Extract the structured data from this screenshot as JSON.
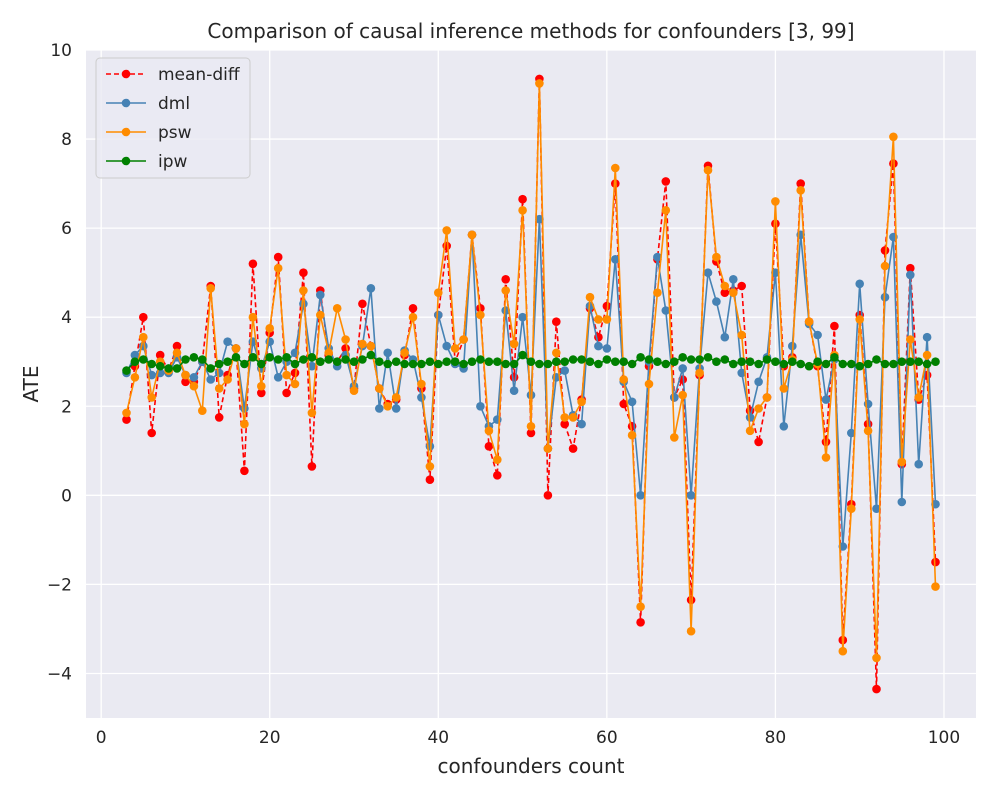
{
  "chart_data": {
    "type": "line",
    "title": "Comparison of causal inference methods for confounders [3, 99]",
    "xlabel": "confounders count",
    "ylabel": "ATE",
    "xlim": [
      -1.8,
      103.8
    ],
    "ylim": [
      -5,
      10
    ],
    "xticks": [
      0,
      20,
      40,
      60,
      80,
      100
    ],
    "yticks": [
      -4,
      -2,
      0,
      2,
      4,
      6,
      8,
      10
    ],
    "ytick_labels": [
      "−4",
      "−2",
      "0",
      "2",
      "4",
      "6",
      "8",
      "10"
    ],
    "grid": true,
    "background": "#eaeaf2",
    "legend_position": "upper-left",
    "x": [
      3,
      4,
      5,
      6,
      7,
      8,
      9,
      10,
      11,
      12,
      13,
      14,
      15,
      16,
      17,
      18,
      19,
      20,
      21,
      22,
      23,
      24,
      25,
      26,
      27,
      28,
      29,
      30,
      31,
      32,
      33,
      34,
      35,
      36,
      37,
      38,
      39,
      40,
      41,
      42,
      43,
      44,
      45,
      46,
      47,
      48,
      49,
      50,
      51,
      52,
      53,
      54,
      55,
      56,
      57,
      58,
      59,
      60,
      61,
      62,
      63,
      64,
      65,
      66,
      67,
      68,
      69,
      70,
      71,
      72,
      73,
      74,
      75,
      76,
      77,
      78,
      79,
      80,
      81,
      82,
      83,
      84,
      85,
      86,
      87,
      88,
      89,
      90,
      91,
      92,
      93,
      94,
      95,
      96,
      97,
      98,
      99
    ],
    "series": [
      {
        "name": "mean-diff",
        "color": "#ff0000",
        "linestyle": "dashed",
        "values": [
          1.7,
          2.9,
          4.0,
          1.4,
          3.15,
          2.8,
          3.35,
          2.55,
          2.55,
          3.0,
          4.7,
          1.75,
          2.7,
          3.3,
          0.55,
          5.2,
          2.3,
          3.65,
          5.35,
          2.3,
          2.75,
          5.0,
          0.65,
          4.6,
          3.15,
          3.0,
          3.3,
          2.4,
          4.3,
          3.35,
          2.4,
          2.05,
          2.15,
          3.15,
          4.2,
          2.4,
          0.35,
          4.05,
          5.6,
          3.0,
          3.5,
          5.85,
          4.2,
          1.1,
          0.45,
          4.85,
          2.65,
          6.65,
          1.4,
          9.35,
          0.0,
          3.9,
          1.6,
          1.05,
          2.15,
          4.2,
          3.55,
          4.25,
          7.0,
          2.05,
          1.55,
          -2.85,
          2.9,
          5.3,
          7.05,
          2.2,
          2.6,
          -2.35,
          2.7,
          7.4,
          5.25,
          4.55,
          4.6,
          4.7,
          1.9,
          1.2,
          2.2,
          6.1,
          2.9,
          3.1,
          7.0,
          3.9,
          2.9,
          1.2,
          3.8,
          -3.25,
          -0.2,
          4.05,
          1.6,
          -4.35,
          5.5,
          7.45,
          0.7,
          5.1,
          2.15,
          2.7,
          -1.5
        ]
      },
      {
        "name": "dml",
        "color": "#4682b4",
        "linestyle": "solid",
        "values": [
          2.75,
          3.15,
          3.35,
          2.7,
          2.75,
          2.75,
          3.1,
          2.7,
          2.65,
          3.0,
          2.6,
          2.75,
          3.45,
          3.3,
          1.95,
          3.45,
          2.85,
          3.45,
          2.65,
          3.0,
          3.2,
          4.3,
          2.9,
          4.5,
          3.3,
          2.9,
          3.15,
          2.45,
          3.35,
          4.65,
          1.95,
          3.2,
          1.95,
          3.25,
          3.05,
          2.2,
          1.1,
          4.05,
          3.35,
          2.95,
          2.85,
          5.85,
          2.0,
          1.55,
          1.7,
          4.15,
          2.35,
          4.0,
          2.25,
          6.2,
          1.05,
          2.65,
          2.8,
          1.8,
          1.6,
          4.25,
          3.35,
          3.3,
          5.3,
          2.55,
          2.1,
          0.0,
          3.0,
          5.35,
          4.15,
          2.2,
          2.85,
          0.0,
          2.85,
          5.0,
          4.35,
          3.55,
          4.85,
          2.75,
          1.75,
          2.55,
          3.1,
          5.0,
          1.55,
          3.35,
          5.85,
          3.85,
          3.6,
          2.15,
          3.05,
          -1.15,
          1.4,
          4.75,
          2.05,
          -0.3,
          4.45,
          5.8,
          -0.15,
          4.95,
          0.7,
          3.55,
          -0.2
        ]
      },
      {
        "name": "psw",
        "color": "#ff8c00",
        "linestyle": "solid",
        "values": [
          1.85,
          2.65,
          3.55,
          2.2,
          3.0,
          2.8,
          3.2,
          2.7,
          2.45,
          1.9,
          4.65,
          2.4,
          2.6,
          3.3,
          1.6,
          4.0,
          2.45,
          3.75,
          5.1,
          2.7,
          2.5,
          4.6,
          1.85,
          4.05,
          3.2,
          4.2,
          3.5,
          2.35,
          3.4,
          3.35,
          2.4,
          2.0,
          2.2,
          3.2,
          4.0,
          2.5,
          0.65,
          4.55,
          5.95,
          3.3,
          3.5,
          5.85,
          4.05,
          1.45,
          0.8,
          4.6,
          3.4,
          6.4,
          1.55,
          9.25,
          1.05,
          3.2,
          1.75,
          1.75,
          2.1,
          4.45,
          3.95,
          3.95,
          7.35,
          2.6,
          1.35,
          -2.5,
          2.5,
          4.55,
          6.4,
          1.3,
          2.25,
          -3.05,
          2.75,
          7.3,
          5.35,
          4.7,
          4.55,
          3.6,
          1.45,
          1.95,
          2.2,
          6.6,
          2.4,
          3.05,
          6.85,
          3.9,
          2.95,
          0.85,
          3.15,
          -3.5,
          -0.3,
          3.95,
          1.45,
          -3.65,
          5.15,
          8.05,
          0.75,
          3.5,
          2.2,
          3.15,
          -2.05
        ]
      },
      {
        "name": "ipw",
        "color": "#008000",
        "linestyle": "solid",
        "values": [
          2.8,
          3.0,
          3.05,
          2.95,
          2.9,
          2.85,
          2.85,
          3.05,
          3.1,
          3.05,
          2.85,
          2.95,
          3.0,
          3.1,
          2.95,
          3.1,
          2.95,
          3.1,
          3.05,
          3.1,
          2.95,
          3.05,
          3.1,
          3.0,
          3.05,
          3.0,
          3.05,
          3.0,
          3.05,
          3.15,
          3.0,
          2.95,
          3.0,
          2.95,
          2.95,
          2.95,
          3.0,
          2.95,
          3.0,
          3.0,
          2.95,
          3.0,
          3.05,
          3.0,
          3.0,
          2.95,
          2.95,
          3.15,
          3.0,
          2.95,
          2.95,
          3.0,
          3.0,
          3.05,
          3.05,
          3.0,
          2.95,
          3.05,
          3.0,
          3.0,
          2.95,
          3.1,
          3.05,
          3.0,
          2.95,
          3.0,
          3.1,
          3.05,
          3.05,
          3.1,
          3.0,
          3.05,
          2.95,
          3.0,
          3.0,
          2.95,
          3.05,
          3.0,
          2.95,
          3.0,
          2.95,
          2.9,
          3.0,
          2.95,
          3.1,
          2.95,
          2.95,
          2.9,
          2.95,
          3.05,
          2.95,
          2.95,
          3.0,
          3.0,
          3.0,
          2.95,
          3.0
        ]
      }
    ]
  }
}
